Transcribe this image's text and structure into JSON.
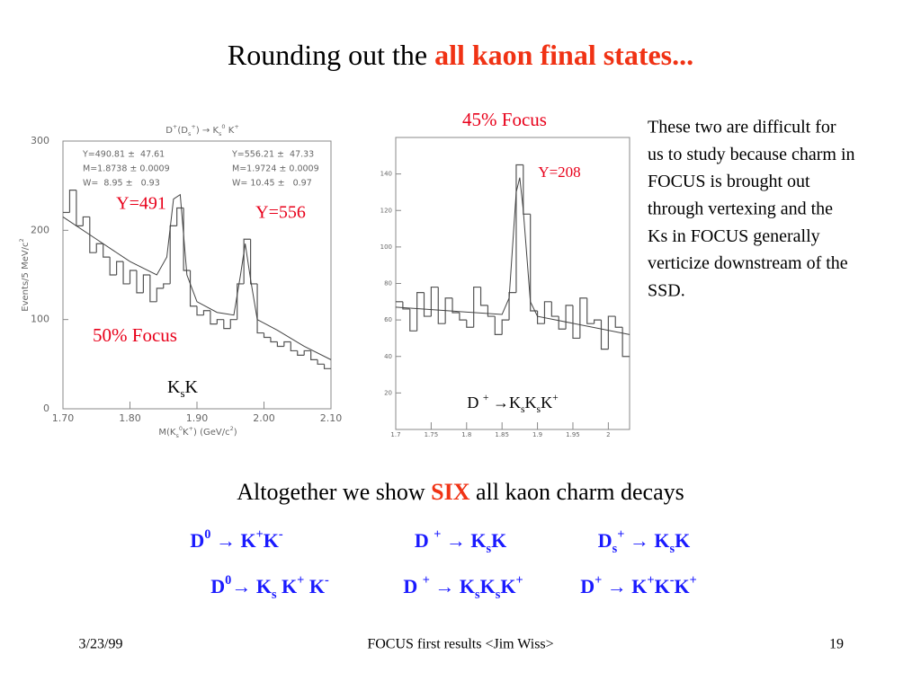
{
  "title": {
    "plain": "Rounding out the ",
    "emphasis": "all kaon final states..."
  },
  "chart_data": [
    {
      "type": "histogram",
      "header": [
        "D",
        {
          "t": "+",
          "pos": "sup"
        },
        "(D",
        {
          "t": "s",
          "pos": "sub"
        },
        {
          "t": "+",
          "pos": "sup"
        },
        ") → K",
        {
          "t": "s",
          "pos": "sub"
        },
        {
          "t": "0",
          "pos": "sup"
        },
        " K",
        {
          "t": "+",
          "pos": "sup"
        }
      ],
      "fit_text": [
        [
          "Y=490.81 ±  47.61",
          "M=1.8738 ± 0.0009",
          "W=  8.95 ±   0.93"
        ],
        [
          "Y=556.21 ±  47.33",
          "M=1.9724 ± 0.0009",
          "W= 10.45 ±   0.97"
        ]
      ],
      "x_label": [
        "M(K",
        {
          "t": "s",
          "pos": "sub"
        },
        {
          "t": "0",
          "pos": "sup"
        },
        "K",
        {
          "t": "+",
          "pos": "sup"
        },
        ") (GeV/c",
        {
          "t": "2",
          "pos": "sup"
        },
        ")"
      ],
      "y_label": [
        "Events/5 MeV/c",
        {
          "t": "2",
          "pos": "sup"
        }
      ],
      "signal_labels": [
        "Y=491",
        "Y=556"
      ],
      "efficiency_label": "50% Focus",
      "mode_label": [
        "K",
        {
          "t": "s",
          "pos": "sub"
        },
        "K"
      ],
      "annotation_color": "#e8001a",
      "color": "#555555",
      "bins": [
        1.7,
        1.71,
        1.72,
        1.73,
        1.74,
        1.75,
        1.76,
        1.77,
        1.78,
        1.79,
        1.8,
        1.81,
        1.82,
        1.83,
        1.84,
        1.85,
        1.86,
        1.87,
        1.88,
        1.89,
        1.9,
        1.91,
        1.92,
        1.93,
        1.94,
        1.95,
        1.96,
        1.97,
        1.98,
        1.99,
        2.0,
        2.01,
        2.02,
        2.03,
        2.04,
        2.05,
        2.06,
        2.07,
        2.08,
        2.09,
        2.1
      ],
      "counts": [
        220,
        245,
        205,
        215,
        175,
        185,
        170,
        150,
        165,
        140,
        155,
        130,
        150,
        120,
        135,
        140,
        205,
        225,
        155,
        115,
        105,
        110,
        95,
        100,
        90,
        100,
        140,
        190,
        140,
        85,
        80,
        75,
        70,
        75,
        65,
        60,
        65,
        55,
        50,
        45
      ],
      "fit": {
        "x": [
          1.7,
          1.75,
          1.8,
          1.84,
          1.855,
          1.865,
          1.875,
          1.885,
          1.9,
          1.93,
          1.955,
          1.965,
          1.972,
          1.98,
          1.99,
          2.02,
          2.06,
          2.1
        ],
        "values": [
          215,
          190,
          165,
          150,
          170,
          235,
          240,
          150,
          120,
          108,
          105,
          150,
          185,
          145,
          100,
          88,
          70,
          55
        ]
      },
      "xlim": [
        1.7,
        2.1
      ],
      "ylim": [
        0,
        300
      ],
      "xticks": [
        {
          "value": 1.7,
          "label": "1.70"
        },
        {
          "value": 1.8,
          "label": "1.80"
        },
        {
          "value": 1.9,
          "label": "1.90"
        },
        {
          "value": 2.0,
          "label": "2.00"
        },
        {
          "value": 2.1,
          "label": "2.10"
        }
      ],
      "yticks": [
        0,
        100,
        200,
        300
      ]
    },
    {
      "type": "histogram",
      "efficiency_label": "45% Focus",
      "signal_labels": [
        "Y=208"
      ],
      "mode_label": [
        "D ",
        {
          "t": "+",
          "pos": "sup"
        },
        " →K",
        {
          "t": "s",
          "pos": "sub"
        },
        "K",
        {
          "t": "s",
          "pos": "sub"
        },
        "K",
        {
          "t": "+",
          "pos": "sup"
        }
      ],
      "annotation_color": "#e8001a",
      "color": "#555555",
      "bins": [
        1.7,
        1.71,
        1.72,
        1.73,
        1.74,
        1.75,
        1.76,
        1.77,
        1.78,
        1.79,
        1.8,
        1.81,
        1.82,
        1.83,
        1.84,
        1.85,
        1.86,
        1.87,
        1.88,
        1.89,
        1.9,
        1.91,
        1.92,
        1.93,
        1.94,
        1.95,
        1.96,
        1.97,
        1.98,
        1.99,
        2.0,
        2.01,
        2.02,
        2.03
      ],
      "counts": [
        70,
        66,
        54,
        75,
        62,
        78,
        58,
        72,
        64,
        60,
        56,
        78,
        68,
        62,
        52,
        60,
        75,
        145,
        118,
        65,
        58,
        70,
        62,
        55,
        68,
        50,
        72,
        58,
        60,
        44,
        62,
        56,
        40
      ],
      "fit": {
        "x": [
          1.7,
          1.85,
          1.86,
          1.87,
          1.875,
          1.88,
          1.89,
          1.9,
          2.03
        ],
        "values": [
          67,
          63,
          72,
          130,
          138,
          120,
          70,
          62,
          52
        ]
      },
      "xlim": [
        1.7,
        2.03
      ],
      "ylim": [
        0,
        160
      ],
      "xticks": [
        1.7,
        1.75,
        1.8,
        1.85,
        1.9,
        1.95,
        2
      ],
      "yticks": [
        20,
        40,
        60,
        80,
        100,
        120,
        140
      ]
    }
  ],
  "side_text": [
    "These two are difficult for",
    "us to study because charm in",
    "FOCUS is brought out",
    "through vertexing and the",
    "Ks in FOCUS generally",
    "verticize downstream of the",
    "SSD."
  ],
  "summary": {
    "before": "Altogether we show ",
    "emphasis": "SIX",
    "after": " all kaon charm decays"
  },
  "decays": [
    [
      [
        "D",
        {
          "t": "0",
          "pos": "sup"
        },
        " → K",
        {
          "t": "+",
          "pos": "sup"
        },
        "K",
        {
          "t": "-",
          "pos": "sup"
        }
      ],
      [
        "D ",
        {
          "t": "+",
          "pos": "sup"
        },
        " → K",
        {
          "t": "s",
          "pos": "sub"
        },
        "K"
      ],
      [
        "D",
        {
          "t": "s",
          "pos": "sub"
        },
        {
          "t": "+",
          "pos": "sup"
        },
        " → K",
        {
          "t": "s",
          "pos": "sub"
        },
        "K"
      ]
    ],
    [
      [
        "D",
        {
          "t": "0",
          "pos": "sup"
        },
        "→ K",
        {
          "t": "s",
          "pos": "sub"
        },
        " K",
        {
          "t": "+",
          "pos": "sup"
        },
        " K",
        {
          "t": "-",
          "pos": "sup"
        }
      ],
      [
        "D ",
        {
          "t": "+",
          "pos": "sup"
        },
        " → K",
        {
          "t": "s",
          "pos": "sub"
        },
        "K",
        {
          "t": "s",
          "pos": "sub"
        },
        "K",
        {
          "t": "+",
          "pos": "sup"
        }
      ],
      [
        "D",
        {
          "t": "+",
          "pos": "sup"
        },
        " → K",
        {
          "t": "+",
          "pos": "sup"
        },
        "K",
        {
          "t": "-",
          "pos": "sup"
        },
        "K",
        {
          "t": "+",
          "pos": "sup"
        }
      ]
    ]
  ],
  "footer": {
    "date": "3/23/99",
    "center": "FOCUS first results <Jim Wiss>",
    "page": "19"
  }
}
